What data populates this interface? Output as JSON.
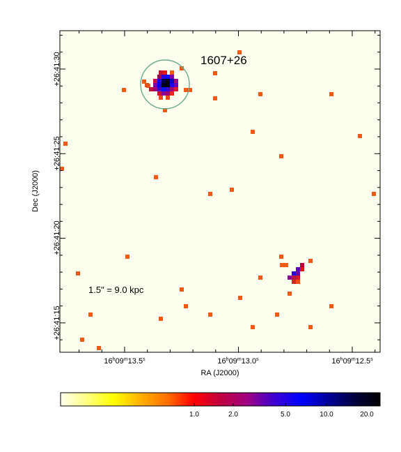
{
  "target": {
    "name": "1607+26",
    "scale_bar": "1.5\" = 9.0 kpc"
  },
  "axes": {
    "xlabel": "RA (J2000)",
    "ylabel": "Dec (J2000)",
    "x_ticks": [
      {
        "h": "16",
        "m": "09",
        "s": "13.5"
      },
      {
        "h": "16",
        "m": "09",
        "s": "13.0"
      },
      {
        "h": "16",
        "m": "09",
        "s": "12.5"
      }
    ],
    "y_ticks": [
      "+26:41:30",
      "+26:41:25",
      "+26:41:20",
      "+26:41:15"
    ]
  },
  "colorbar": {
    "ticks": [
      "1.0",
      "2.0",
      "5.0",
      "10.0",
      "20.0"
    ],
    "stops": [
      "#fffff0",
      "#ffff80",
      "#ffff00",
      "#ffb000",
      "#ff7000",
      "#ff0000",
      "#c00040",
      "#a00080",
      "#4000d0",
      "#0000ff",
      "#0000a0",
      "#000040",
      "#000000"
    ]
  },
  "colors": {
    "background": "#fffff0",
    "single_count": "#f05a14",
    "ring": "#6aa98e"
  }
}
